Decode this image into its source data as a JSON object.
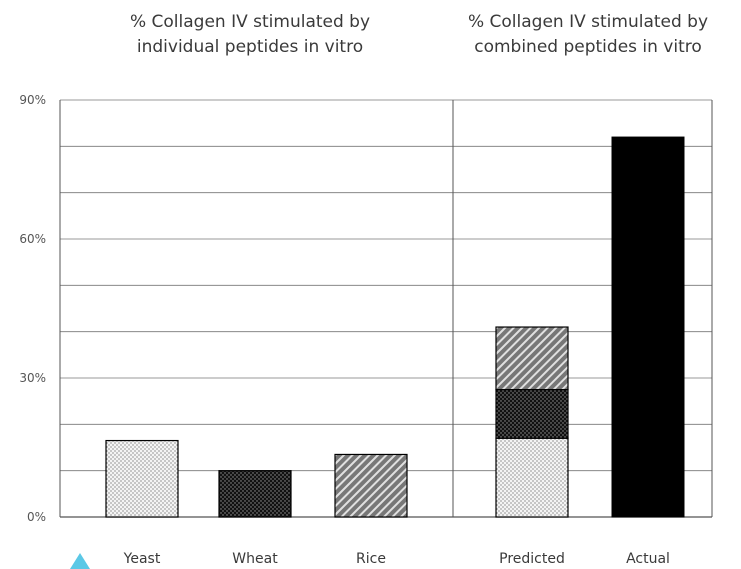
{
  "chart_data": {
    "type": "bar",
    "panels": [
      {
        "title_lines": [
          "% Collagen IV stimulated by",
          "individual peptides in vitro"
        ],
        "categories": [
          "Yeast",
          "Wheat",
          "Rice"
        ],
        "values": [
          16.5,
          10,
          13.5
        ],
        "patterns": [
          "dots",
          "dark-dots",
          "diagonal"
        ]
      },
      {
        "title_lines": [
          "% Collagen IV stimulated by",
          "combined peptides in vitro"
        ],
        "categories": [
          "Predicted",
          "Actual"
        ],
        "stacked": {
          "Predicted": [
            {
              "label": "Yeast",
              "value": 17,
              "pattern": "dots"
            },
            {
              "label": "Wheat",
              "value": 10.5,
              "pattern": "dark-dots"
            },
            {
              "label": "Rice",
              "value": 13.5,
              "pattern": "diagonal"
            }
          ]
        },
        "values": [
          41,
          82
        ],
        "patterns": [
          "stacked",
          "solid"
        ]
      }
    ],
    "yticks": [
      "0%",
      "30%",
      "60%",
      "90%"
    ],
    "ylim": [
      0,
      90
    ],
    "grid": true,
    "xlabel": "",
    "ylabel": ""
  },
  "colors": {
    "axis": "#555555",
    "grid": "#777777",
    "bar_solid": "#000000",
    "text": "#3a3a3a",
    "marker": "#5bc8e6"
  }
}
